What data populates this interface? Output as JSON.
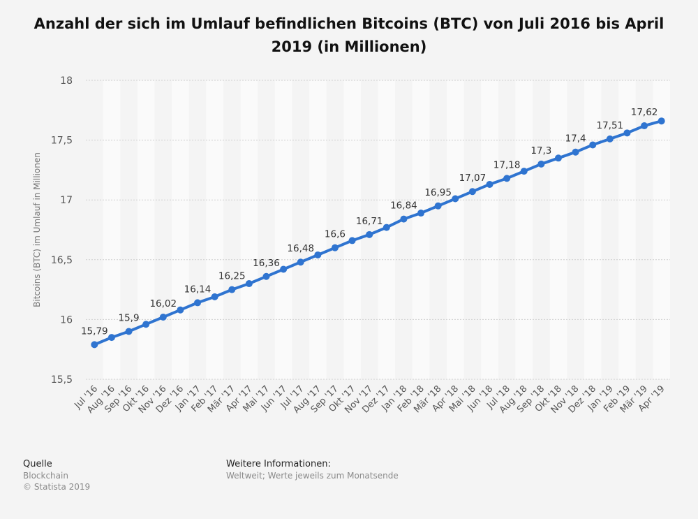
{
  "title": "Anzahl der sich im Umlauf befindlichen Bitcoins (BTC) von Juli 2016 bis April 2019 (in Millionen)",
  "footer": {
    "source_heading": "Quelle",
    "source_name": "Blockchain",
    "copyright": "© Statista 2019",
    "info_heading": "Weitere Informationen:",
    "info_text": "Weltweit; Werte jeweils zum Monatsende"
  },
  "colors": {
    "line": "#2f74d0",
    "background": "#f4f4f4",
    "stripe": "#fafafa",
    "grid": "#cfcfcf"
  },
  "chart_data": {
    "type": "line",
    "title": "Anzahl der sich im Umlauf befindlichen Bitcoins (BTC) von Juli 2016 bis April 2019 (in Millionen)",
    "xlabel": "",
    "ylabel": "Bitcoins (BTC) im Umlauf in Millionen",
    "ylim": [
      15.5,
      18
    ],
    "yticks": [
      15.5,
      16,
      16.5,
      17,
      17.5,
      18
    ],
    "ytick_labels": [
      "15,5",
      "16",
      "16,5",
      "17",
      "17,5",
      "18"
    ],
    "grid": true,
    "categories": [
      "Jul '16",
      "Aug '16",
      "Sep '16",
      "Okt '16",
      "Nov '16",
      "Dez '16",
      "Jan '17",
      "Feb '17",
      "Mär '17",
      "Apr '17",
      "Mai '17",
      "Jun '17",
      "Jul '17",
      "Aug '17",
      "Sep '17",
      "Okt '17",
      "Nov '17",
      "Dez '17",
      "Jan '18",
      "Feb '18",
      "Mär '18",
      "Apr '18",
      "Mai '18",
      "Jun '18",
      "Jul '18",
      "Aug '18",
      "Sep '18",
      "Okt '18",
      "Nov '18",
      "Dez '18",
      "Jan '19",
      "Feb '19",
      "Mär '19",
      "Apr '19"
    ],
    "values": [
      15.79,
      15.85,
      15.9,
      15.96,
      16.02,
      16.08,
      16.14,
      16.19,
      16.25,
      16.3,
      16.36,
      16.42,
      16.48,
      16.54,
      16.6,
      16.66,
      16.71,
      16.77,
      16.84,
      16.89,
      16.95,
      17.01,
      17.07,
      17.13,
      17.18,
      17.24,
      17.3,
      17.35,
      17.4,
      17.46,
      17.51,
      17.56,
      17.62,
      17.66
    ],
    "data_labels": [
      {
        "index": 0,
        "text": "15,79"
      },
      {
        "index": 2,
        "text": "15,9"
      },
      {
        "index": 4,
        "text": "16,02"
      },
      {
        "index": 6,
        "text": "16,14"
      },
      {
        "index": 8,
        "text": "16,25"
      },
      {
        "index": 10,
        "text": "16,36"
      },
      {
        "index": 12,
        "text": "16,48"
      },
      {
        "index": 14,
        "text": "16,6"
      },
      {
        "index": 16,
        "text": "16,71"
      },
      {
        "index": 18,
        "text": "16,84"
      },
      {
        "index": 20,
        "text": "16,95"
      },
      {
        "index": 22,
        "text": "17,07"
      },
      {
        "index": 24,
        "text": "17,18"
      },
      {
        "index": 26,
        "text": "17,3"
      },
      {
        "index": 28,
        "text": "17,4"
      },
      {
        "index": 30,
        "text": "17,51"
      },
      {
        "index": 32,
        "text": "17,62"
      }
    ]
  }
}
